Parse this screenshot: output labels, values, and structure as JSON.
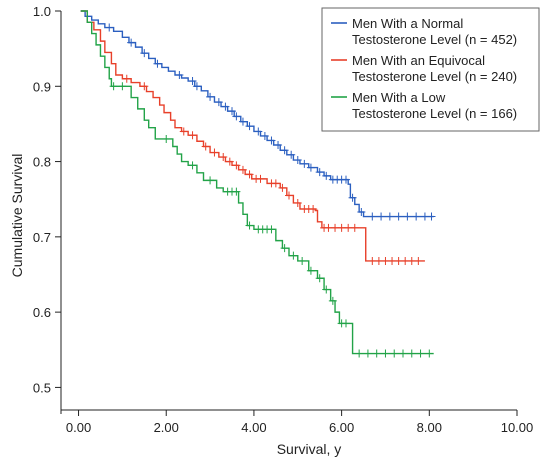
{
  "chart_data": {
    "type": "line",
    "subtype": "kaplan-meier survival curve",
    "xlabel": "Survival, y",
    "ylabel": "Cumulative Survival",
    "xlim": [
      -0.4,
      10
    ],
    "ylim": [
      0.47,
      1.0
    ],
    "x_ticks": [
      0,
      2,
      4,
      6,
      8,
      10
    ],
    "x_tick_labels": [
      "0.00",
      "2.00",
      "4.00",
      "6.00",
      "8.00",
      "10.00"
    ],
    "y_ticks": [
      0.5,
      0.6,
      0.7,
      0.8,
      0.9,
      1.0
    ],
    "y_tick_labels": [
      "0.5",
      "0.6",
      "0.7",
      "0.8",
      "0.9",
      "1.0"
    ],
    "grid": false,
    "legend_position": "top-right",
    "series": [
      {
        "name": "Men With a Normal Testosterone Level (n = 452)",
        "legend_lines": [
          "Men With a Normal",
          "Testosterone Level (n = 452)"
        ],
        "color": "#2b5fc0",
        "steps": [
          [
            0.05,
            1.0
          ],
          [
            0.15,
            0.993
          ],
          [
            0.3,
            0.988
          ],
          [
            0.45,
            0.983
          ],
          [
            0.6,
            0.978
          ],
          [
            0.8,
            0.973
          ],
          [
            1.0,
            0.965
          ],
          [
            1.15,
            0.958
          ],
          [
            1.3,
            0.952
          ],
          [
            1.45,
            0.944
          ],
          [
            1.6,
            0.937
          ],
          [
            1.75,
            0.93
          ],
          [
            1.9,
            0.925
          ],
          [
            2.05,
            0.92
          ],
          [
            2.2,
            0.915
          ],
          [
            2.35,
            0.911
          ],
          [
            2.5,
            0.907
          ],
          [
            2.65,
            0.9
          ],
          [
            2.8,
            0.894
          ],
          [
            2.95,
            0.886
          ],
          [
            3.1,
            0.879
          ],
          [
            3.25,
            0.873
          ],
          [
            3.4,
            0.867
          ],
          [
            3.55,
            0.86
          ],
          [
            3.7,
            0.853
          ],
          [
            3.85,
            0.847
          ],
          [
            4.0,
            0.84
          ],
          [
            4.15,
            0.834
          ],
          [
            4.3,
            0.828
          ],
          [
            4.45,
            0.822
          ],
          [
            4.6,
            0.815
          ],
          [
            4.75,
            0.809
          ],
          [
            4.9,
            0.802
          ],
          [
            5.05,
            0.797
          ],
          [
            5.25,
            0.792
          ],
          [
            5.45,
            0.786
          ],
          [
            5.6,
            0.781
          ],
          [
            5.75,
            0.776
          ],
          [
            6.15,
            0.77
          ],
          [
            6.2,
            0.752
          ],
          [
            6.3,
            0.743
          ],
          [
            6.4,
            0.733
          ],
          [
            6.5,
            0.727
          ],
          [
            8.1,
            0.727
          ]
        ],
        "censor_marks": [
          [
            0.7,
            0.978
          ],
          [
            1.2,
            0.958
          ],
          [
            1.5,
            0.944
          ],
          [
            1.8,
            0.93
          ],
          [
            2.3,
            0.915
          ],
          [
            2.6,
            0.907
          ],
          [
            2.7,
            0.9
          ],
          [
            3.0,
            0.886
          ],
          [
            3.2,
            0.879
          ],
          [
            3.35,
            0.873
          ],
          [
            3.5,
            0.867
          ],
          [
            3.6,
            0.86
          ],
          [
            3.75,
            0.853
          ],
          [
            3.9,
            0.847
          ],
          [
            4.1,
            0.84
          ],
          [
            4.25,
            0.834
          ],
          [
            4.4,
            0.828
          ],
          [
            4.55,
            0.822
          ],
          [
            4.7,
            0.815
          ],
          [
            4.85,
            0.809
          ],
          [
            5.0,
            0.802
          ],
          [
            5.15,
            0.797
          ],
          [
            5.3,
            0.792
          ],
          [
            5.5,
            0.786
          ],
          [
            5.65,
            0.781
          ],
          [
            5.8,
            0.776
          ],
          [
            5.9,
            0.776
          ],
          [
            6.0,
            0.776
          ],
          [
            6.1,
            0.776
          ],
          [
            6.25,
            0.752
          ],
          [
            6.45,
            0.733
          ],
          [
            6.7,
            0.727
          ],
          [
            6.9,
            0.727
          ],
          [
            7.1,
            0.727
          ],
          [
            7.3,
            0.727
          ],
          [
            7.5,
            0.727
          ],
          [
            7.7,
            0.727
          ],
          [
            7.9,
            0.727
          ],
          [
            8.05,
            0.727
          ]
        ]
      },
      {
        "name": "Men With an Equivocal Testosterone Level (n = 240)",
        "legend_lines": [
          "Men With an Equivocal",
          "Testosterone Level (n = 240)"
        ],
        "color": "#e8402a",
        "steps": [
          [
            0.05,
            1.0
          ],
          [
            0.2,
            0.985
          ],
          [
            0.35,
            0.975
          ],
          [
            0.5,
            0.96
          ],
          [
            0.6,
            0.945
          ],
          [
            0.75,
            0.93
          ],
          [
            0.85,
            0.915
          ],
          [
            1.0,
            0.91
          ],
          [
            1.2,
            0.905
          ],
          [
            1.4,
            0.9
          ],
          [
            1.55,
            0.893
          ],
          [
            1.7,
            0.885
          ],
          [
            1.85,
            0.875
          ],
          [
            1.95,
            0.865
          ],
          [
            2.1,
            0.855
          ],
          [
            2.2,
            0.845
          ],
          [
            2.35,
            0.84
          ],
          [
            2.5,
            0.835
          ],
          [
            2.7,
            0.827
          ],
          [
            2.85,
            0.82
          ],
          [
            3.0,
            0.812
          ],
          [
            3.2,
            0.806
          ],
          [
            3.35,
            0.8
          ],
          [
            3.5,
            0.795
          ],
          [
            3.65,
            0.789
          ],
          [
            3.8,
            0.783
          ],
          [
            3.95,
            0.777
          ],
          [
            4.3,
            0.771
          ],
          [
            4.6,
            0.765
          ],
          [
            4.75,
            0.755
          ],
          [
            4.9,
            0.745
          ],
          [
            5.05,
            0.737
          ],
          [
            5.4,
            0.735
          ],
          [
            5.45,
            0.72
          ],
          [
            5.55,
            0.712
          ],
          [
            6.5,
            0.712
          ],
          [
            6.55,
            0.668
          ],
          [
            7.9,
            0.668
          ]
        ],
        "censor_marks": [
          [
            1.1,
            0.91
          ],
          [
            1.5,
            0.9
          ],
          [
            2.4,
            0.84
          ],
          [
            2.6,
            0.835
          ],
          [
            2.9,
            0.82
          ],
          [
            3.1,
            0.812
          ],
          [
            3.3,
            0.806
          ],
          [
            3.45,
            0.8
          ],
          [
            3.6,
            0.795
          ],
          [
            3.75,
            0.789
          ],
          [
            3.9,
            0.783
          ],
          [
            4.05,
            0.777
          ],
          [
            4.15,
            0.777
          ],
          [
            4.4,
            0.771
          ],
          [
            4.5,
            0.771
          ],
          [
            4.65,
            0.765
          ],
          [
            4.8,
            0.755
          ],
          [
            5.0,
            0.745
          ],
          [
            5.15,
            0.737
          ],
          [
            5.25,
            0.737
          ],
          [
            5.35,
            0.737
          ],
          [
            5.6,
            0.712
          ],
          [
            5.7,
            0.712
          ],
          [
            5.85,
            0.712
          ],
          [
            6.0,
            0.712
          ],
          [
            6.15,
            0.712
          ],
          [
            6.3,
            0.712
          ],
          [
            6.7,
            0.668
          ],
          [
            6.85,
            0.668
          ],
          [
            7.0,
            0.668
          ],
          [
            7.15,
            0.668
          ],
          [
            7.3,
            0.668
          ],
          [
            7.45,
            0.668
          ],
          [
            7.6,
            0.668
          ],
          [
            7.75,
            0.668
          ]
        ]
      },
      {
        "name": "Men With a Low Testosterone Level (n = 166)",
        "legend_lines": [
          "Men With a Low",
          "Testosterone Level (n = 166)"
        ],
        "color": "#22a348",
        "steps": [
          [
            0.05,
            1.0
          ],
          [
            0.2,
            0.985
          ],
          [
            0.3,
            0.97
          ],
          [
            0.4,
            0.955
          ],
          [
            0.5,
            0.94
          ],
          [
            0.6,
            0.925
          ],
          [
            0.7,
            0.91
          ],
          [
            0.75,
            0.9
          ],
          [
            1.2,
            0.885
          ],
          [
            1.35,
            0.87
          ],
          [
            1.5,
            0.855
          ],
          [
            1.6,
            0.845
          ],
          [
            1.75,
            0.83
          ],
          [
            2.15,
            0.82
          ],
          [
            2.25,
            0.81
          ],
          [
            2.35,
            0.8
          ],
          [
            2.5,
            0.795
          ],
          [
            2.7,
            0.785
          ],
          [
            2.85,
            0.775
          ],
          [
            3.15,
            0.765
          ],
          [
            3.3,
            0.76
          ],
          [
            3.65,
            0.745
          ],
          [
            3.75,
            0.73
          ],
          [
            3.85,
            0.715
          ],
          [
            4.0,
            0.71
          ],
          [
            4.5,
            0.695
          ],
          [
            4.65,
            0.685
          ],
          [
            4.8,
            0.675
          ],
          [
            5.0,
            0.668
          ],
          [
            5.25,
            0.655
          ],
          [
            5.45,
            0.645
          ],
          [
            5.6,
            0.63
          ],
          [
            5.75,
            0.615
          ],
          [
            5.85,
            0.6
          ],
          [
            5.95,
            0.585
          ],
          [
            6.2,
            0.585
          ],
          [
            6.25,
            0.545
          ],
          [
            8.1,
            0.545
          ]
        ],
        "censor_marks": [
          [
            0.8,
            0.9
          ],
          [
            1.0,
            0.9
          ],
          [
            2.0,
            0.83
          ],
          [
            2.6,
            0.795
          ],
          [
            3.0,
            0.775
          ],
          [
            3.4,
            0.76
          ],
          [
            3.5,
            0.76
          ],
          [
            3.6,
            0.76
          ],
          [
            3.9,
            0.715
          ],
          [
            4.1,
            0.71
          ],
          [
            4.2,
            0.71
          ],
          [
            4.3,
            0.71
          ],
          [
            4.4,
            0.71
          ],
          [
            4.7,
            0.685
          ],
          [
            4.9,
            0.675
          ],
          [
            5.1,
            0.668
          ],
          [
            5.3,
            0.655
          ],
          [
            5.5,
            0.645
          ],
          [
            5.65,
            0.63
          ],
          [
            5.8,
            0.615
          ],
          [
            6.0,
            0.585
          ],
          [
            6.1,
            0.585
          ],
          [
            6.4,
            0.545
          ],
          [
            6.6,
            0.545
          ],
          [
            6.8,
            0.545
          ],
          [
            7.0,
            0.545
          ],
          [
            7.2,
            0.545
          ],
          [
            7.4,
            0.545
          ],
          [
            7.6,
            0.545
          ],
          [
            7.8,
            0.545
          ],
          [
            8.0,
            0.545
          ]
        ]
      }
    ]
  }
}
